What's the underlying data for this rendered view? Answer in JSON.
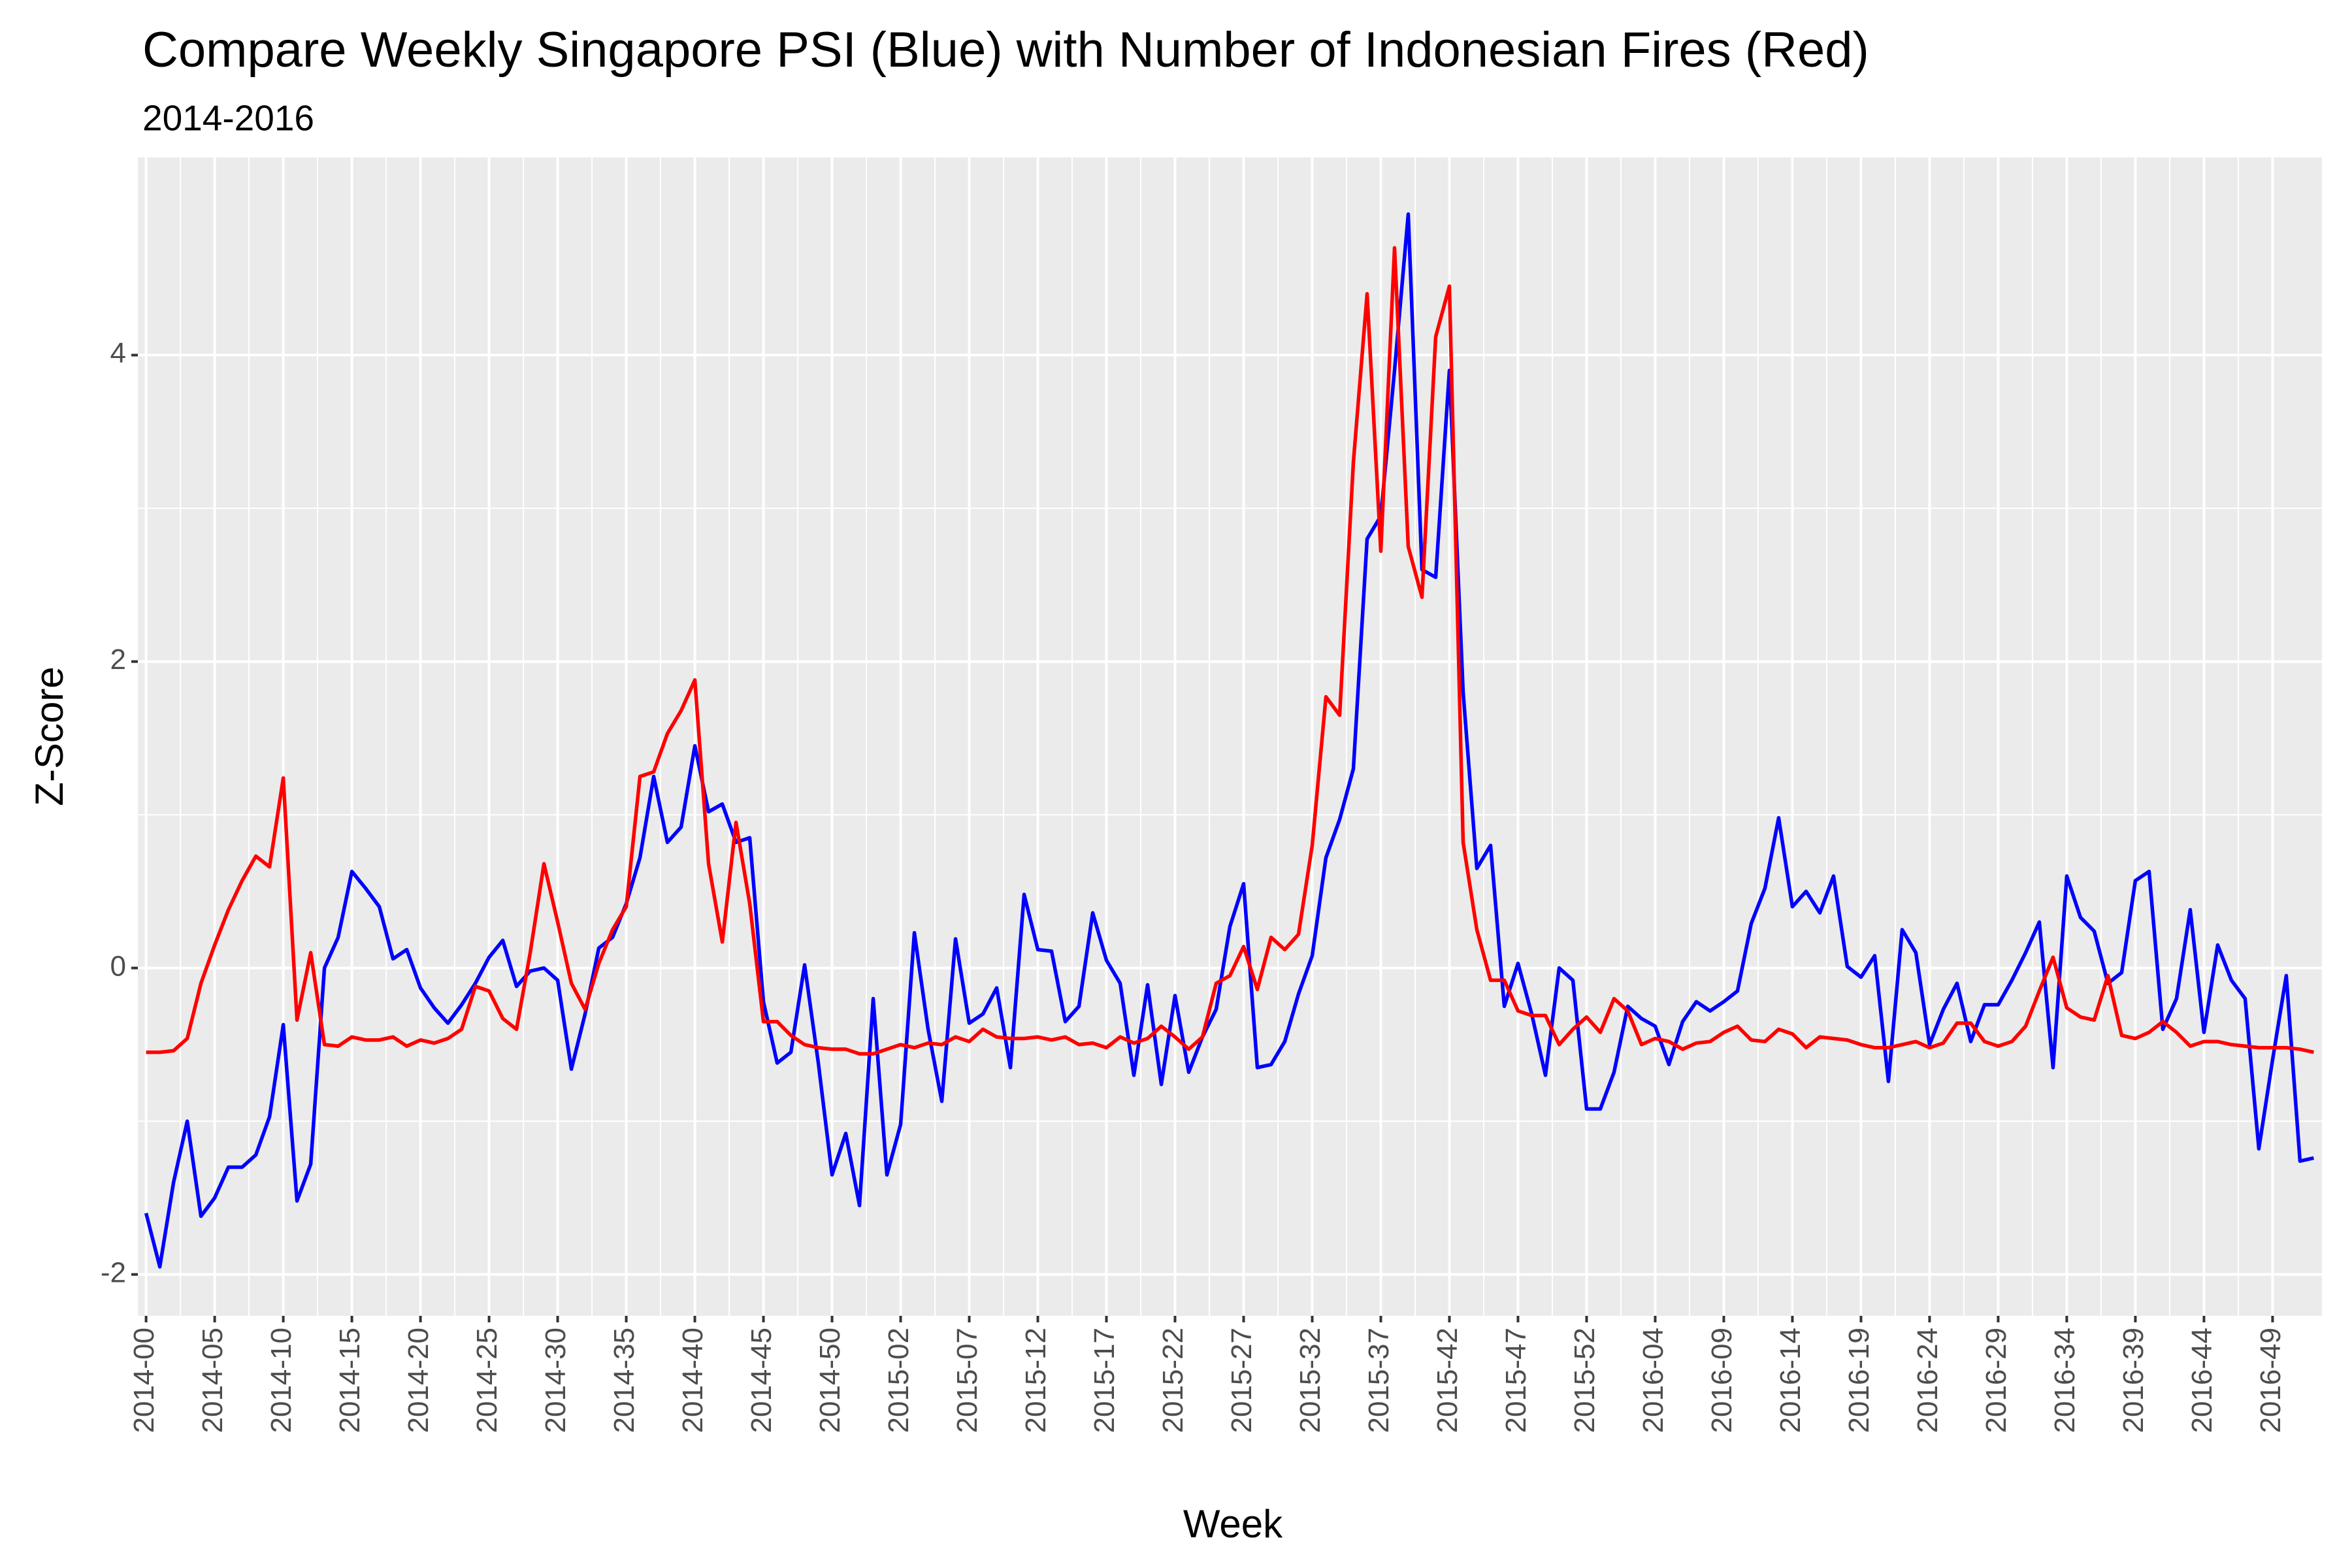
{
  "chart_data": {
    "type": "line",
    "title": "Compare Weekly Singapore PSI (Blue) with Number of Indonesian Fires (Red)",
    "subtitle": "2014-2016",
    "x_label": "Week",
    "y_label": "Z-Score",
    "categories": [
      "2014-00",
      null,
      null,
      null,
      null,
      "2014-05",
      null,
      null,
      null,
      null,
      "2014-10",
      null,
      null,
      null,
      null,
      "2014-15",
      null,
      null,
      null,
      null,
      "2014-20",
      null,
      null,
      null,
      null,
      "2014-25",
      null,
      null,
      null,
      null,
      "2014-30",
      null,
      null,
      null,
      null,
      "2014-35",
      null,
      null,
      null,
      null,
      "2014-40",
      null,
      null,
      null,
      null,
      "2014-45",
      null,
      null,
      null,
      null,
      "2014-50",
      null,
      null,
      null,
      null,
      "2015-02",
      null,
      null,
      null,
      null,
      "2015-07",
      null,
      null,
      null,
      null,
      "2015-12",
      null,
      null,
      null,
      null,
      "2015-17",
      null,
      null,
      null,
      null,
      "2015-22",
      null,
      null,
      null,
      null,
      "2015-27",
      null,
      null,
      null,
      null,
      "2015-32",
      null,
      null,
      null,
      null,
      "2015-37",
      null,
      null,
      null,
      null,
      "2015-42",
      null,
      null,
      null,
      null,
      "2015-47",
      null,
      null,
      null,
      null,
      "2015-52",
      null,
      null,
      null,
      null,
      "2016-04",
      null,
      null,
      null,
      null,
      "2016-09",
      null,
      null,
      null,
      null,
      "2016-14",
      null,
      null,
      null,
      null,
      "2016-19",
      null,
      null,
      null,
      null,
      "2016-24",
      null,
      null,
      null,
      null,
      "2016-29",
      null,
      null,
      null,
      null,
      "2016-34",
      null,
      null,
      null,
      null,
      "2016-39",
      null,
      null,
      null,
      null,
      "2016-44",
      null,
      null,
      null,
      null,
      "2016-49",
      null,
      null,
      null
    ],
    "series": [
      {
        "color": "#0000ff",
        "values": [
          -1.6,
          -1.95,
          -1.4,
          -1.0,
          -1.62,
          -1.5,
          -1.3,
          -1.3,
          -1.22,
          -0.97,
          -0.37,
          -1.52,
          -1.28,
          0.0,
          0.2,
          0.63,
          0.52,
          0.4,
          0.06,
          0.12,
          -0.13,
          -0.26,
          -0.36,
          -0.24,
          -0.1,
          0.07,
          0.18,
          -0.12,
          -0.02,
          0.0,
          -0.08,
          -0.66,
          -0.3,
          0.13,
          0.2,
          0.42,
          0.72,
          1.25,
          0.82,
          0.92,
          1.45,
          1.02,
          1.07,
          0.82,
          0.85,
          -0.22,
          -0.62,
          -0.55,
          0.02,
          -0.62,
          -1.35,
          -1.08,
          -1.55,
          -0.2,
          -1.35,
          -1.02,
          0.23,
          -0.4,
          -0.87,
          0.19,
          -0.36,
          -0.3,
          -0.13,
          -0.65,
          0.48,
          0.12,
          0.11,
          -0.35,
          -0.25,
          0.36,
          0.05,
          -0.1,
          -0.7,
          -0.11,
          -0.76,
          -0.18,
          -0.68,
          -0.45,
          -0.27,
          0.27,
          0.55,
          -0.65,
          -0.63,
          -0.48,
          -0.17,
          0.08,
          0.72,
          0.97,
          1.3,
          2.8,
          2.95,
          3.9,
          4.92,
          2.6,
          2.55,
          3.9,
          1.8,
          0.65,
          0.8,
          -0.25,
          0.03,
          -0.3,
          -0.7,
          0.0,
          -0.08,
          -0.92,
          -0.92,
          -0.68,
          -0.25,
          -0.33,
          -0.38,
          -0.63,
          -0.35,
          -0.22,
          -0.28,
          -0.22,
          -0.15,
          0.29,
          0.52,
          0.98,
          0.4,
          0.5,
          0.36,
          0.6,
          0.01,
          -0.06,
          0.08,
          -0.74,
          0.25,
          0.1,
          -0.5,
          -0.27,
          -0.1,
          -0.48,
          -0.24,
          -0.24,
          -0.08,
          0.1,
          0.3,
          -0.65,
          0.6,
          0.33,
          0.24,
          -0.1,
          -0.03,
          0.57,
          0.63,
          -0.4,
          -0.2,
          0.38,
          -0.42,
          0.15,
          -0.08,
          -0.2,
          -1.18,
          -0.6,
          -0.05,
          -1.26,
          -1.24
        ]
      },
      {
        "color": "#ff0000",
        "values": [
          -0.55,
          -0.55,
          -0.54,
          -0.46,
          -0.1,
          0.15,
          0.38,
          0.57,
          0.73,
          0.66,
          1.24,
          -0.34,
          0.1,
          -0.5,
          -0.51,
          -0.45,
          -0.47,
          -0.47,
          -0.45,
          -0.51,
          -0.47,
          -0.49,
          -0.46,
          -0.4,
          -0.12,
          -0.15,
          -0.33,
          -0.4,
          0.1,
          0.68,
          0.3,
          -0.1,
          -0.27,
          0.03,
          0.25,
          0.4,
          1.25,
          1.28,
          1.53,
          1.68,
          1.88,
          0.68,
          0.17,
          0.95,
          0.42,
          -0.35,
          -0.35,
          -0.44,
          -0.5,
          -0.52,
          -0.53,
          -0.53,
          -0.56,
          -0.56,
          -0.53,
          -0.5,
          -0.52,
          -0.49,
          -0.5,
          -0.45,
          -0.48,
          -0.4,
          -0.45,
          -0.46,
          -0.46,
          -0.45,
          -0.47,
          -0.45,
          -0.5,
          -0.49,
          -0.52,
          -0.45,
          -0.49,
          -0.46,
          -0.38,
          -0.45,
          -0.53,
          -0.45,
          -0.1,
          -0.05,
          0.14,
          -0.14,
          0.2,
          0.12,
          0.22,
          0.8,
          1.77,
          1.65,
          3.3,
          4.4,
          2.72,
          4.7,
          2.75,
          2.42,
          4.12,
          4.45,
          0.82,
          0.25,
          -0.08,
          -0.08,
          -0.28,
          -0.31,
          -0.31,
          -0.5,
          -0.4,
          -0.32,
          -0.42,
          -0.2,
          -0.28,
          -0.5,
          -0.46,
          -0.48,
          -0.53,
          -0.49,
          -0.48,
          -0.42,
          -0.38,
          -0.47,
          -0.48,
          -0.4,
          -0.43,
          -0.52,
          -0.45,
          -0.46,
          -0.47,
          -0.5,
          -0.52,
          -0.52,
          -0.5,
          -0.48,
          -0.52,
          -0.49,
          -0.36,
          -0.36,
          -0.48,
          -0.51,
          -0.48,
          -0.38,
          -0.15,
          0.07,
          -0.26,
          -0.32,
          -0.34,
          -0.05,
          -0.44,
          -0.46,
          -0.42,
          -0.35,
          -0.42,
          -0.51,
          -0.48,
          -0.48,
          -0.5,
          -0.51,
          -0.52,
          -0.52,
          -0.52,
          -0.53,
          -0.55
        ]
      }
    ],
    "ylim": [
      -2.27,
      5.29
    ],
    "yticks": [
      -2,
      0,
      2,
      4
    ],
    "grid": true
  }
}
